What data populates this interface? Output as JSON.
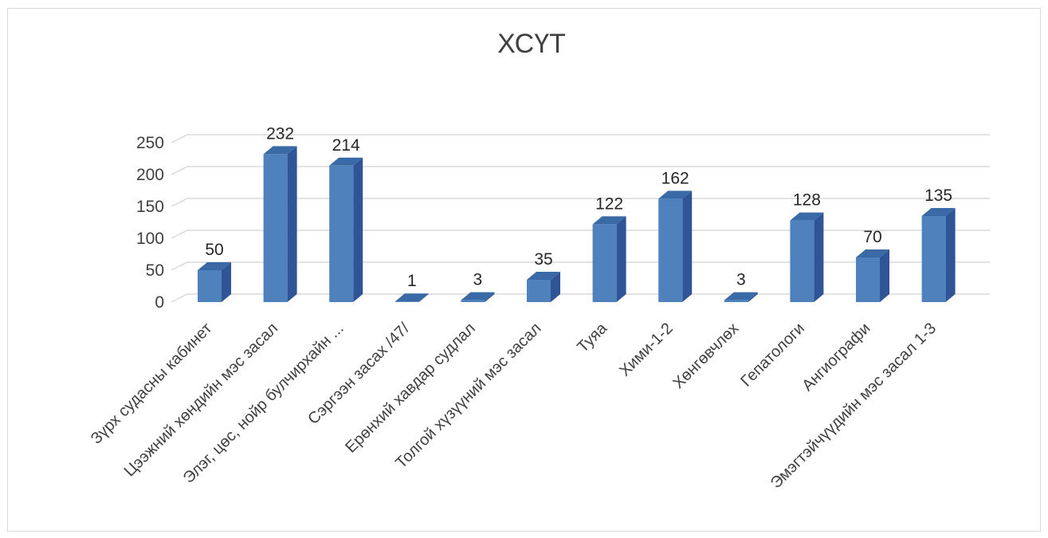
{
  "chart_data": {
    "type": "bar",
    "style": "3d-column",
    "title": "ХСҮТ",
    "categories": [
      "Зүрх судасны кабинет",
      "Цээжний хөндийн мэс засал",
      "Элэг, цөс, нойр булчирхайн ...",
      "Сэргээн засах /47/",
      "Ерөнхий хавдар судлал",
      "Толгой хүзүүний мэс засал",
      "Туяа",
      "Хими-1-2",
      "Хөнгөвчлөх",
      "Гепатологи",
      "Ангиографи",
      "Эмэгтэйчүүдийн мэс засал 1-3"
    ],
    "values": [
      50,
      232,
      214,
      1,
      3,
      35,
      122,
      162,
      3,
      128,
      70,
      135
    ],
    "data_labels": [
      "50",
      "232",
      "214",
      "1",
      "3",
      "35",
      "122",
      "162",
      "3",
      "128",
      "70",
      "135"
    ],
    "y_ticks": [
      "0",
      "50",
      "100",
      "150",
      "200",
      "250"
    ],
    "ylim": [
      0,
      250
    ],
    "grid": true,
    "legend": "none",
    "colors": {
      "bar_front": "#4f81bd",
      "bar_side": "#2f5597",
      "bar_top": "#3a6aa6",
      "grid": "#d9d9d9",
      "text": "#404040"
    }
  }
}
